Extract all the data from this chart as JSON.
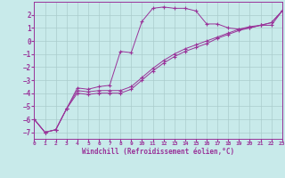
{
  "xlabel": "Windchill (Refroidissement éolien,°C)",
  "background_color": "#c8eaea",
  "grid_color": "#aacccc",
  "line_color": "#993399",
  "xlim": [
    0,
    23
  ],
  "ylim": [
    -7.5,
    3.0
  ],
  "xticks": [
    0,
    1,
    2,
    3,
    4,
    5,
    6,
    7,
    8,
    9,
    10,
    11,
    12,
    13,
    14,
    15,
    16,
    17,
    18,
    19,
    20,
    21,
    22,
    23
  ],
  "yticks": [
    -7,
    -6,
    -5,
    -4,
    -3,
    -2,
    -1,
    0,
    1,
    2
  ],
  "series1_x": [
    0,
    1,
    2,
    3,
    4,
    5,
    6,
    7,
    8,
    9,
    10,
    11,
    12,
    13,
    14,
    15,
    16,
    17,
    18,
    19,
    20,
    21,
    22,
    23
  ],
  "series1_y": [
    -6.0,
    -7.0,
    -6.8,
    -5.2,
    -3.6,
    -3.7,
    -3.5,
    -3.4,
    -0.8,
    -0.9,
    1.5,
    2.5,
    2.6,
    2.5,
    2.5,
    2.3,
    1.3,
    1.3,
    1.0,
    0.9,
    1.1,
    1.2,
    1.2,
    2.3
  ],
  "series2_x": [
    0,
    1,
    2,
    3,
    4,
    5,
    6,
    7,
    8,
    9,
    10,
    11,
    12,
    13,
    14,
    15,
    16,
    17,
    18,
    19,
    20,
    21,
    22,
    23
  ],
  "series2_y": [
    -6.0,
    -7.0,
    -6.8,
    -5.2,
    -3.8,
    -3.9,
    -3.8,
    -3.8,
    -3.8,
    -3.5,
    -2.8,
    -2.1,
    -1.5,
    -1.0,
    -0.6,
    -0.3,
    0.0,
    0.3,
    0.6,
    0.9,
    1.0,
    1.2,
    1.4,
    2.3
  ],
  "series3_x": [
    0,
    1,
    2,
    3,
    4,
    5,
    6,
    7,
    8,
    9,
    10,
    11,
    12,
    13,
    14,
    15,
    16,
    17,
    18,
    19,
    20,
    21,
    22,
    23
  ],
  "series3_y": [
    -6.0,
    -7.0,
    -6.8,
    -5.2,
    -4.0,
    -4.1,
    -4.0,
    -4.0,
    -4.0,
    -3.7,
    -3.0,
    -2.3,
    -1.7,
    -1.2,
    -0.8,
    -0.5,
    -0.2,
    0.2,
    0.5,
    0.8,
    1.0,
    1.2,
    1.4,
    2.3
  ]
}
